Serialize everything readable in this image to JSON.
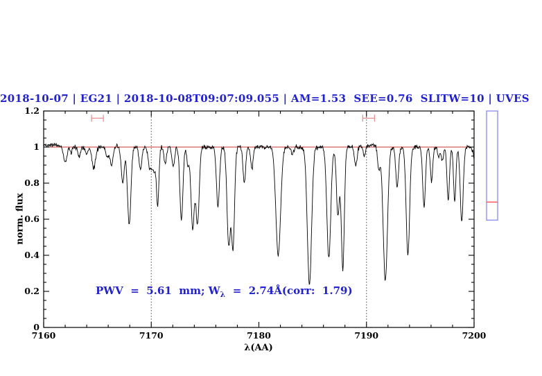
{
  "figure": {
    "title": "2018-10-07 | EG21 | 2018-10-08T09:07:09.055 | AM=1.53  SEE=0.76  SLITW=10 | UVES",
    "title_color": "#2222cc"
  },
  "annotation": {
    "prefix": "PWV  =  5.61  mm; W",
    "subscript": "λ",
    "suffix": "  =  2.74Å(corr:  1.79)",
    "color": "#2222cc"
  },
  "axes": {
    "xlabel": "λ(AA)",
    "ylabel": "norm. flux",
    "xlim": [
      7160,
      7200
    ],
    "ylim": [
      0,
      1.2
    ],
    "xticks_major": [
      7160,
      7170,
      7180,
      7190,
      7200
    ],
    "xtick_labels": [
      "7160",
      "7170",
      "7180",
      "7190",
      "7200"
    ],
    "x_minor_step": 2,
    "yticks_major": [
      0,
      0.2,
      0.4,
      0.6,
      0.8,
      1,
      1.2
    ],
    "ytick_labels": [
      "0",
      "0.2",
      "0.4",
      "0.6",
      "0.8",
      "1",
      "1.2"
    ],
    "y_minor_step": 0.05
  },
  "chart_data": {
    "type": "line",
    "title": "2018-10-07 | EG21 | 2018-10-08T09:07:09.055 | AM=1.53  SEE=0.76  SLITW=10 | UVES",
    "xlabel": "λ(AA)",
    "ylabel": "norm. flux",
    "xlim": [
      7160,
      7200
    ],
    "ylim": [
      0,
      1.2
    ],
    "grid": false,
    "description": "Normalized telluric absorption spectrum; continuum at 1.0; absorption_lines are [center_wavelength_AA, depth_below_continuum, gaussian_sigma_AA]; min flux 0.24 at 7184.7 AA",
    "continuum_level": 1.0,
    "continuum_line_color": "#cc3333",
    "spectrum_color": "#000000",
    "noise_sigma": 0.006,
    "guide_lines_x": [
      7170,
      7190
    ],
    "absorption_lines": [
      [
        7162.0,
        0.085,
        0.15
      ],
      [
        7162.55,
        0.035,
        0.1
      ],
      [
        7163.3,
        0.05,
        0.12
      ],
      [
        7164.0,
        0.045,
        0.12
      ],
      [
        7164.65,
        0.115,
        0.17
      ],
      [
        7165.9,
        0.055,
        0.12
      ],
      [
        7166.3,
        0.1,
        0.14
      ],
      [
        7167.35,
        0.2,
        0.14
      ],
      [
        7167.95,
        0.43,
        0.16
      ],
      [
        7169.0,
        0.12,
        0.13
      ],
      [
        7169.85,
        0.1,
        0.15
      ],
      [
        7170.25,
        0.13,
        0.2
      ],
      [
        7170.6,
        0.3,
        0.11
      ],
      [
        7171.3,
        0.09,
        0.12
      ],
      [
        7172.05,
        0.11,
        0.12
      ],
      [
        7172.8,
        0.41,
        0.14
      ],
      [
        7173.4,
        0.1,
        0.1
      ],
      [
        7173.85,
        0.45,
        0.16
      ],
      [
        7174.3,
        0.43,
        0.15
      ],
      [
        7176.2,
        0.33,
        0.14
      ],
      [
        7177.2,
        0.54,
        0.16
      ],
      [
        7177.6,
        0.55,
        0.14
      ],
      [
        7178.65,
        0.2,
        0.12
      ],
      [
        7179.35,
        0.12,
        0.11
      ],
      [
        7181.8,
        0.6,
        0.22
      ],
      [
        7183.1,
        0.04,
        0.12
      ],
      [
        7184.7,
        0.76,
        0.2
      ],
      [
        7186.5,
        0.62,
        0.18
      ],
      [
        7187.35,
        0.38,
        0.14
      ],
      [
        7187.8,
        0.68,
        0.14
      ],
      [
        7189.0,
        0.1,
        0.12
      ],
      [
        7189.8,
        0.06,
        0.1
      ],
      [
        7191.15,
        0.12,
        0.12
      ],
      [
        7191.75,
        0.74,
        0.2
      ],
      [
        7192.85,
        0.22,
        0.13
      ],
      [
        7193.85,
        0.6,
        0.16
      ],
      [
        7195.35,
        0.33,
        0.13
      ],
      [
        7196.05,
        0.19,
        0.11
      ],
      [
        7196.7,
        0.06,
        0.1
      ],
      [
        7197.05,
        0.08,
        0.1
      ],
      [
        7197.6,
        0.29,
        0.12
      ],
      [
        7198.2,
        0.3,
        0.11
      ],
      [
        7198.85,
        0.41,
        0.14
      ],
      [
        7200.3,
        0.2,
        0.2
      ]
    ],
    "emission_bumps": [
      [
        7160.5,
        0.013,
        0.8
      ],
      [
        7190.35,
        0.012,
        0.5
      ]
    ],
    "markers": [
      {
        "x_center": 7165.0,
        "x_halfwidth": 0.55,
        "flux": 1.16
      },
      {
        "x_center": 7190.2,
        "x_halfwidth": 0.55,
        "flux": 1.16
      }
    ],
    "marker_color": "#ee8f8f",
    "side_gauge": {
      "flux_top": 1.2,
      "flux_bottom": 0.595,
      "marker_flux": 0.695,
      "border_color": "#9292f2",
      "marker_color": "#ff5252"
    }
  }
}
